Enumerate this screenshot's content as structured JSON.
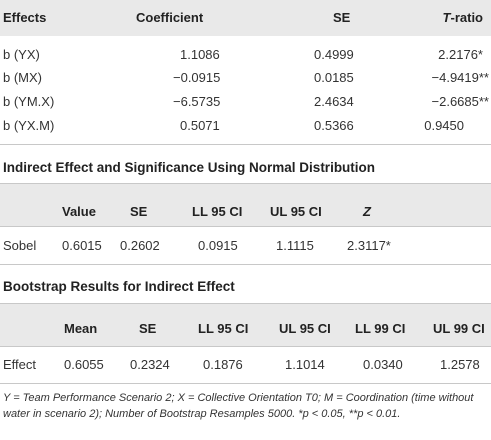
{
  "table1": {
    "headers": {
      "effects": "Effects",
      "coefficient": "Coefficient",
      "se": "SE",
      "t_prefix": "T",
      "t_suffix": "-ratio"
    },
    "rows": [
      {
        "effect": "b (YX)",
        "coef": "1.1086",
        "se": "0.4999",
        "t": "2.2176*"
      },
      {
        "effect": "b (MX)",
        "coef": "−0.0915",
        "se": "0.0185",
        "t": "−4.9419**"
      },
      {
        "effect": "b (YM.X)",
        "coef": "−6.5735",
        "se": "2.4634",
        "t": "−2.6685**"
      },
      {
        "effect": "b (YX.M)",
        "coef": "0.5071",
        "se": "0.5366",
        "t": "0.9450"
      }
    ]
  },
  "table2": {
    "title": "Indirect Effect and Significance Using Normal Distribution",
    "headers": [
      "Value",
      "SE",
      "LL 95 CI",
      "UL 95 CI",
      "Z"
    ],
    "row": {
      "label": "Sobel",
      "values": [
        "0.6015",
        "0.2602",
        "0.0915",
        "1.1115",
        "2.3117*"
      ]
    }
  },
  "table3": {
    "title": "Bootstrap Results for Indirect Effect",
    "headers": [
      "Mean",
      "SE",
      "LL 95 CI",
      "UL 95 CI",
      "LL 99 CI",
      "UL 99 CI"
    ],
    "row": {
      "label": "Effect",
      "values": [
        "0.6055",
        "0.2324",
        "0.1876",
        "1.1014",
        "0.0340",
        "1.2578"
      ]
    }
  },
  "footnote": "Y = Team Performance Scenario 2; X = Collective Orientation T0; M = Coordination (time without water in scenario 2); Number of Bootstrap Resamples 5000. *p < 0.05, **p < 0.01."
}
